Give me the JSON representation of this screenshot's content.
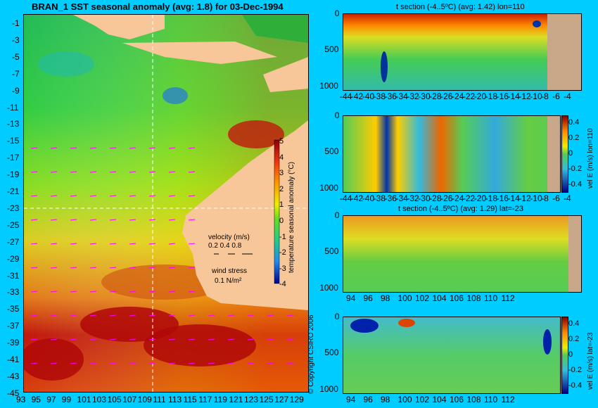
{
  "map": {
    "title": "BRAN_1  SST seasonal anomaly  (avg: 1.8) for 03-Dec-1994",
    "lat_ticks": [
      "-1",
      "-3",
      "-5",
      "-7",
      "-9",
      "-11",
      "-13",
      "-15",
      "-17",
      "-19",
      "-21",
      "-23",
      "-25",
      "-27",
      "-29",
      "-31",
      "-33",
      "-35",
      "-37",
      "-39",
      "-41",
      "-43",
      "-45"
    ],
    "lon_ticks": [
      "93",
      "95",
      "97",
      "99",
      "101",
      "103",
      "105",
      "107",
      "109",
      "111",
      "113",
      "115",
      "117",
      "119",
      "121",
      "123",
      "125",
      "127",
      "129"
    ],
    "colorbar": {
      "label": "temperature seasonal anomaly (°C)",
      "ticks": [
        "5",
        "4",
        "3",
        "2",
        "1",
        "0",
        "-1",
        "-2",
        "-3",
        "-4"
      ]
    },
    "velocity_legend": {
      "title": "velocity (m/s)",
      "scale": "0.2 0.4 0.8",
      "wind_title": "wind stress",
      "wind_value": "0.1 N/m²"
    },
    "copyright": "© Copyright CSIRO 2006",
    "section_lines": {
      "lon": 110,
      "lat": -23
    }
  },
  "panels": [
    {
      "id": "t-lon",
      "title": "t section (-4..5ºC) (avg: 1.42) lon=110",
      "y_ticks": [
        "0",
        "500",
        "1000"
      ],
      "x_ticks": [
        "-44",
        "-42",
        "-40",
        "-38",
        "-36",
        "-34",
        "-32",
        "-30",
        "-28",
        "-26",
        "-24",
        "-22",
        "-20",
        "-18",
        "-16",
        "-14",
        "-12",
        "-10",
        "-8",
        "-6",
        "-4"
      ]
    },
    {
      "id": "v-lon",
      "title": "",
      "y_ticks": [
        "0",
        "500",
        "1000"
      ],
      "x_ticks": [
        "-44",
        "-42",
        "-40",
        "-38",
        "-36",
        "-34",
        "-32",
        "-30",
        "-28",
        "-26",
        "-24",
        "-22",
        "-20",
        "-18",
        "-16",
        "-14",
        "-12",
        "-10",
        "-8",
        "-6",
        "-4"
      ],
      "colorbar": {
        "label": "vel E (m/s) lon=110",
        "ticks": [
          "0.4",
          "0.2",
          "0",
          "-0.2",
          "-0.4"
        ]
      }
    },
    {
      "id": "t-lat",
      "title": "t section (-4..5ºC) (avg: 1.29) lat=-23",
      "y_ticks": [
        "0",
        "500",
        "1000"
      ],
      "x_ticks": [
        "94",
        "96",
        "98",
        "100",
        "102",
        "104",
        "106",
        "108",
        "110",
        "112"
      ]
    },
    {
      "id": "v-lat",
      "title": "",
      "y_ticks": [
        "0",
        "500",
        "1000"
      ],
      "x_ticks": [
        "94",
        "96",
        "98",
        "100",
        "102",
        "104",
        "106",
        "108",
        "110",
        "112"
      ],
      "colorbar": {
        "label": "vel E (m/s) lat=-23",
        "ticks": [
          "0.4",
          "0.2",
          "0",
          "-0.2",
          "-0.4"
        ]
      }
    }
  ],
  "colors": {
    "background": "#00ccff",
    "land": "#f7c79a",
    "land_section": "#c8a888",
    "vector": "#ff00ff"
  }
}
